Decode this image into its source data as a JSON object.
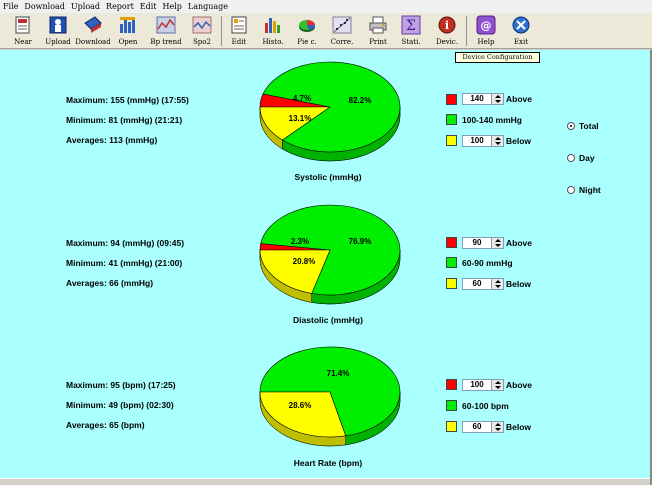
{
  "menu": [
    "File",
    "Download",
    "Upload",
    "Report",
    "Edit",
    "Help",
    "Language"
  ],
  "toolbar": [
    {
      "label": "Near",
      "icon": "near-icon"
    },
    {
      "label": "Upload",
      "icon": "upload-icon"
    },
    {
      "label": "Download",
      "icon": "download-icon"
    },
    {
      "label": "Open",
      "icon": "open-icon"
    },
    {
      "label": "Bp trend",
      "icon": "bp-trend-icon"
    },
    {
      "label": "Spo2",
      "icon": "spo2-icon"
    },
    {
      "label": "Edit",
      "icon": "edit-icon"
    },
    {
      "label": "Histo.",
      "icon": "histogram-icon"
    },
    {
      "label": "Pie c.",
      "icon": "pie-chart-icon"
    },
    {
      "label": "Corre.",
      "icon": "correlation-icon"
    },
    {
      "label": "Print",
      "icon": "print-icon"
    },
    {
      "label": "Stati.",
      "icon": "statistics-icon"
    },
    {
      "label": "Devic.",
      "icon": "device-icon"
    },
    {
      "label": "Help",
      "icon": "help-icon"
    },
    {
      "label": "Exit",
      "icon": "exit-icon"
    }
  ],
  "tooltip": "Device Configuration",
  "colors": {
    "above": "#ff0000",
    "normal": "#00ee00",
    "below": "#ffff00",
    "background": "#aaffff"
  },
  "systolic": {
    "title": "Systolic (mmHg)",
    "maximum": "Maximum: 155 (mmHg) (17:55)",
    "minimum": "Minimum: 81 (mmHg) (21:21)",
    "average": "Averages: 113 (mmHg)",
    "above_value": "140",
    "above_label": "Above",
    "range_label": "100-140 mmHg",
    "below_value": "100",
    "below_label": "Below"
  },
  "diastolic": {
    "title": "Diastolic (mmHg)",
    "maximum": "Maximum: 94 (mmHg) (09:45)",
    "minimum": "Minimum: 41 (mmHg) (21:00)",
    "average": "Averages: 66 (mmHg)",
    "above_value": "90",
    "above_label": "Above",
    "range_label": "60-90 mmHg",
    "below_value": "60",
    "below_label": "Below"
  },
  "heart_rate": {
    "title": "Heart Rate (bpm)",
    "maximum": "Maximum: 95 (bpm) (17:25)",
    "minimum": "Minimum: 49 (bpm) (02:30)",
    "average": "Averages: 65 (bpm)",
    "above_value": "100",
    "above_label": "Above",
    "range_label": "60-100 bpm",
    "below_value": "60",
    "below_label": "Below"
  },
  "period": {
    "options": [
      "Total",
      "Day",
      "Night"
    ],
    "selected": "Total"
  },
  "chart_data": [
    {
      "type": "pie",
      "title": "Systolic (mmHg)",
      "labels": [
        "Above",
        "Normal",
        "Below"
      ],
      "values": [
        4.7,
        82.2,
        13.1
      ],
      "value_labels": [
        "4.7%",
        "82.2%",
        "13.1%"
      ],
      "colors": [
        "#ff0000",
        "#00ee00",
        "#ffff00"
      ]
    },
    {
      "type": "pie",
      "title": "Diastolic (mmHg)",
      "labels": [
        "Above",
        "Normal",
        "Below"
      ],
      "values": [
        2.3,
        76.9,
        20.8
      ],
      "value_labels": [
        "2.3%",
        "76.9%",
        "20.8%"
      ],
      "colors": [
        "#ff0000",
        "#00ee00",
        "#ffff00"
      ]
    },
    {
      "type": "pie",
      "title": "Heart Rate (bpm)",
      "labels": [
        "Normal",
        "Below"
      ],
      "values": [
        71.4,
        28.6
      ],
      "value_labels": [
        "71.4%",
        "28.6%"
      ],
      "colors": [
        "#00ee00",
        "#ffff00"
      ]
    }
  ]
}
